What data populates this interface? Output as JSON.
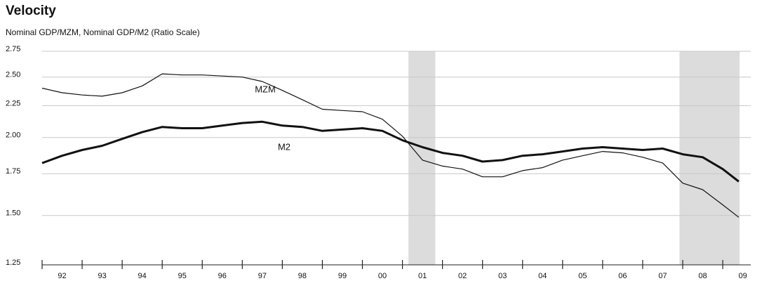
{
  "chart_data": {
    "type": "line",
    "title": "Velocity",
    "subtitle": "Nominal GDP/MZM, Nominal GDP/M2 (Ratio Scale)",
    "log_scale": true,
    "grid": true,
    "x": [
      1992.0,
      1992.5,
      1993.0,
      1993.5,
      1994.0,
      1994.5,
      1995.0,
      1995.5,
      1996.0,
      1996.5,
      1997.0,
      1997.5,
      1998.0,
      1998.5,
      1999.0,
      1999.5,
      2000.0,
      2000.5,
      2001.0,
      2001.5,
      2002.0,
      2002.5,
      2003.0,
      2003.5,
      2004.0,
      2004.5,
      2005.0,
      2005.5,
      2006.0,
      2006.5,
      2007.0,
      2007.5,
      2008.0,
      2008.5,
      2009.0,
      2009.4
    ],
    "series": [
      {
        "name": "MZM",
        "color": "#111111",
        "width": 1.2,
        "values": [
          2.4,
          2.36,
          2.34,
          2.33,
          2.36,
          2.42,
          2.53,
          2.52,
          2.52,
          2.51,
          2.5,
          2.46,
          2.38,
          2.3,
          2.22,
          2.21,
          2.2,
          2.14,
          2.01,
          1.84,
          1.8,
          1.78,
          1.73,
          1.73,
          1.77,
          1.79,
          1.84,
          1.87,
          1.9,
          1.89,
          1.86,
          1.82,
          1.69,
          1.65,
          1.56,
          1.49
        ]
      },
      {
        "name": "M2",
        "color": "#111111",
        "width": 3,
        "values": [
          1.82,
          1.87,
          1.91,
          1.94,
          1.99,
          2.04,
          2.08,
          2.07,
          2.07,
          2.09,
          2.11,
          2.12,
          2.09,
          2.08,
          2.05,
          2.06,
          2.07,
          2.05,
          1.98,
          1.93,
          1.89,
          1.87,
          1.83,
          1.84,
          1.87,
          1.88,
          1.9,
          1.92,
          1.93,
          1.92,
          1.91,
          1.92,
          1.88,
          1.86,
          1.78,
          1.7
        ]
      }
    ],
    "shaded_periods": [
      [
        2001.15,
        2001.82
      ],
      [
        2007.92,
        2009.42
      ]
    ],
    "shade_color": "#dcdcdc",
    "xlim": [
      1992,
      2009.7
    ],
    "xticks": [
      {
        "value": 1992,
        "label": "92"
      },
      {
        "value": 1993,
        "label": "93"
      },
      {
        "value": 1994,
        "label": "94"
      },
      {
        "value": 1995,
        "label": "95"
      },
      {
        "value": 1996,
        "label": "96"
      },
      {
        "value": 1997,
        "label": "97"
      },
      {
        "value": 1998,
        "label": "98"
      },
      {
        "value": 1999,
        "label": "99"
      },
      {
        "value": 2000,
        "label": "00"
      },
      {
        "value": 2001,
        "label": "01"
      },
      {
        "value": 2002,
        "label": "02"
      },
      {
        "value": 2003,
        "label": "03"
      },
      {
        "value": 2004,
        "label": "04"
      },
      {
        "value": 2005,
        "label": "05"
      },
      {
        "value": 2006,
        "label": "06"
      },
      {
        "value": 2007,
        "label": "07"
      },
      {
        "value": 2008,
        "label": "08"
      },
      {
        "value": 2009,
        "label": "09"
      }
    ],
    "ylim": [
      1.25,
      2.75
    ],
    "yticks": [
      1.25,
      {
        "value": 1.5,
        "label": "1.50"
      },
      1.75,
      {
        "value": 2.0,
        "label": "2.00"
      },
      2.25,
      {
        "value": 2.5,
        "label": "2.50"
      },
      2.75
    ]
  }
}
